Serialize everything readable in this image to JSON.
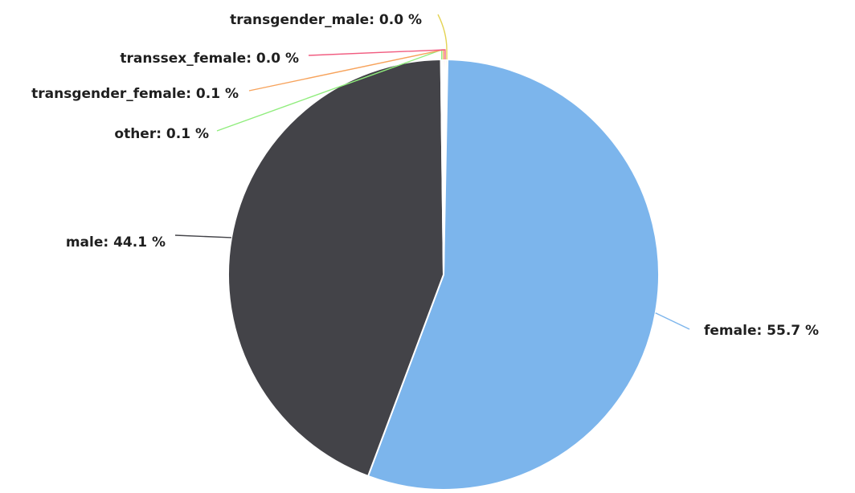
{
  "chart_data": {
    "type": "pie",
    "title": "",
    "unit": "%",
    "slices": [
      {
        "name": "female",
        "value": 55.7,
        "label": "female: 55.7 %",
        "color": "#7cb5ec"
      },
      {
        "name": "male",
        "value": 44.1,
        "label": "male: 44.1 %",
        "color": "#434348"
      },
      {
        "name": "other",
        "value": 0.1,
        "label": "other: 0.1 %",
        "color": "#90ed7d"
      },
      {
        "name": "transgender_female",
        "value": 0.1,
        "label": "transgender_female: 0.1 %",
        "color": "#f7a35c"
      },
      {
        "name": "transsex_female",
        "value": 0.0,
        "label": "transsex_female: 0.0 %",
        "color": "#f15c80"
      },
      {
        "name": "transgender_male",
        "value": 0.0,
        "label": "transgender_male: 0.0 %",
        "color": "#e4d354"
      }
    ]
  }
}
